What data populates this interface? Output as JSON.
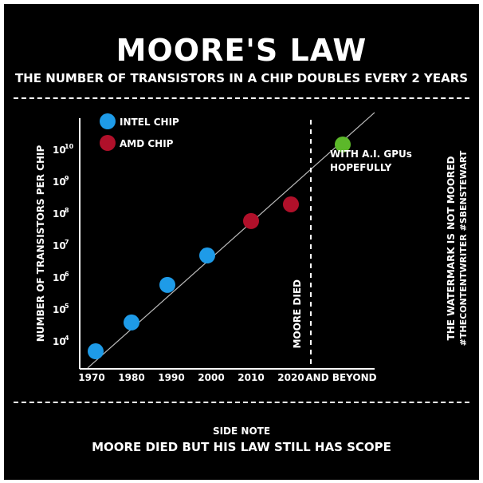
{
  "colors": {
    "background": "#000000",
    "foreground": "#ffffff",
    "intel": "#1e9be8",
    "amd": "#b0102a",
    "future": "#5cb82a",
    "trend": "#bbbbbb"
  },
  "header": {
    "title": "MOORE'S LAW",
    "subtitle": "THE NUMBER OF TRANSISTORS IN A CHIP DOUBLES EVERY 2 YEARS"
  },
  "footer": {
    "label": "SIDE NOTE",
    "text": "MOORE DIED BUT HIS LAW STILL HAS SCOPE"
  },
  "watermark": {
    "line1": "THE WATERMARK IS NOT MOORED",
    "line2": "#THECONTENTWRITER #SBENSTEWART"
  },
  "chart_data": {
    "type": "scatter",
    "title": "MOORE'S LAW",
    "subtitle": "THE NUMBER OF TRANSISTORS IN A CHIP DOUBLES EVERY 2 YEARS",
    "ylabel": "NUMBER OF TRANSISTORS PER CHIP",
    "xlabel": "",
    "y_scale": "log",
    "x_ticks": [
      "1970",
      "1980",
      "1990",
      "2000",
      "2010",
      "2020",
      "AND BEYOND"
    ],
    "y_ticks": [
      {
        "base": "10",
        "exp": "4"
      },
      {
        "base": "10",
        "exp": "5"
      },
      {
        "base": "10",
        "exp": "6"
      },
      {
        "base": "10",
        "exp": "7"
      },
      {
        "base": "10",
        "exp": "8"
      },
      {
        "base": "10",
        "exp": "9"
      },
      {
        "base": "10",
        "exp": "10"
      }
    ],
    "legend": {
      "placement": "top-left",
      "entries": [
        "INTEL CHIP",
        "AMD CHIP"
      ]
    },
    "series": [
      {
        "name": "INTEL CHIP",
        "color": "#1e9be8",
        "points": [
          {
            "x": 1971,
            "y": 5000
          },
          {
            "x": 1980,
            "y": 40000
          },
          {
            "x": 1989,
            "y": 600000
          },
          {
            "x": 1999,
            "y": 5000000
          }
        ]
      },
      {
        "name": "AMD CHIP",
        "color": "#b0102a",
        "points": [
          {
            "x": 2010,
            "y": 60000000
          },
          {
            "x": 2020,
            "y": 200000000
          }
        ]
      },
      {
        "name": "",
        "color": "#5cb82a",
        "points": [
          {
            "x": 2033,
            "y": 15000000000
          }
        ]
      }
    ],
    "trendline": [
      {
        "x": 1969,
        "y": 1500
      },
      {
        "x": 2041,
        "y": 150000000000
      }
    ],
    "annotations": {
      "moore_died_label": "MOORE DIED",
      "moore_died_x": 2025,
      "future_label_line1": "WITH A.I. GPUs",
      "future_label_line2": "HOPEFULLY"
    }
  }
}
